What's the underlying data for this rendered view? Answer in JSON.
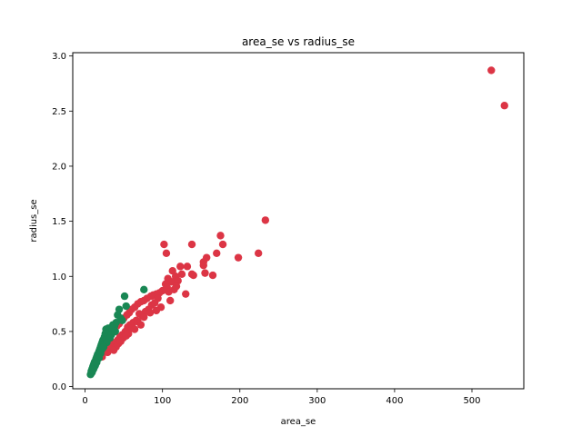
{
  "chart_data": {
    "type": "scatter",
    "title": "area_se vs radius_se",
    "xlabel": "area_se",
    "ylabel": "radius_se",
    "xlim": [
      -16,
      567
    ],
    "ylim": [
      -0.02,
      3.03
    ],
    "xticks": [
      0,
      100,
      200,
      300,
      400,
      500
    ],
    "yticks": [
      0.0,
      0.5,
      1.0,
      1.5,
      2.0,
      2.5,
      3.0
    ],
    "grid": false,
    "series": [
      {
        "color": "#dc3545",
        "points": [
          [
            525,
            2.87
          ],
          [
            542,
            2.55
          ],
          [
            233,
            1.51
          ],
          [
            175,
            1.37
          ],
          [
            178,
            1.29
          ],
          [
            138,
            1.29
          ],
          [
            102,
            1.29
          ],
          [
            105,
            1.21
          ],
          [
            224,
            1.21
          ],
          [
            198,
            1.17
          ],
          [
            170,
            1.21
          ],
          [
            157,
            1.17
          ],
          [
            153,
            1.13
          ],
          [
            153,
            1.1
          ],
          [
            123,
            1.09
          ],
          [
            113,
            1.05
          ],
          [
            132,
            1.09
          ],
          [
            140,
            1.01
          ],
          [
            138,
            1.02
          ],
          [
            125,
            1.02
          ],
          [
            117,
            1.0
          ],
          [
            107,
            0.98
          ],
          [
            165,
            1.01
          ],
          [
            155,
            1.03
          ],
          [
            112,
            0.95
          ],
          [
            104,
            0.93
          ],
          [
            100,
            0.87
          ],
          [
            96,
            0.85
          ],
          [
            92,
            0.84
          ],
          [
            88,
            0.83
          ],
          [
            85,
            0.82
          ],
          [
            80,
            0.8
          ],
          [
            76,
            0.78
          ],
          [
            72,
            0.77
          ],
          [
            68,
            0.75
          ],
          [
            64,
            0.72
          ],
          [
            60,
            0.7
          ],
          [
            57,
            0.67
          ],
          [
            54,
            0.65
          ],
          [
            50,
            0.62
          ],
          [
            47,
            0.6
          ],
          [
            44,
            0.57
          ],
          [
            41,
            0.55
          ],
          [
            38,
            0.52
          ],
          [
            35,
            0.49
          ],
          [
            33,
            0.47
          ],
          [
            31,
            0.44
          ],
          [
            30,
            0.42
          ],
          [
            28,
            0.39
          ],
          [
            26,
            0.37
          ],
          [
            24,
            0.34
          ],
          [
            22,
            0.27
          ],
          [
            130,
            0.84
          ],
          [
            115,
            0.88
          ],
          [
            110,
            0.78
          ],
          [
            98,
            0.72
          ],
          [
            94,
            0.8
          ],
          [
            86,
            0.74
          ],
          [
            82,
            0.7
          ],
          [
            78,
            0.68
          ],
          [
            74,
            0.64
          ],
          [
            70,
            0.66
          ],
          [
            66,
            0.6
          ],
          [
            62,
            0.58
          ],
          [
            58,
            0.56
          ],
          [
            55,
            0.54
          ],
          [
            52,
            0.5
          ],
          [
            48,
            0.47
          ],
          [
            45,
            0.45
          ],
          [
            42,
            0.42
          ],
          [
            39,
            0.4
          ],
          [
            36,
            0.38
          ],
          [
            34,
            0.36
          ],
          [
            32,
            0.34
          ],
          [
            90,
            0.76
          ],
          [
            84,
            0.67
          ],
          [
            76,
            0.63
          ],
          [
            68,
            0.59
          ],
          [
            61,
            0.53
          ],
          [
            56,
            0.48
          ],
          [
            49,
            0.44
          ],
          [
            43,
            0.39
          ],
          [
            106,
            0.9
          ],
          [
            120,
            0.96
          ],
          [
            118,
            0.91
          ],
          [
            108,
            0.86
          ],
          [
            92,
            0.69
          ],
          [
            72,
            0.56
          ],
          [
            64,
            0.52
          ],
          [
            53,
            0.46
          ],
          [
            46,
            0.41
          ],
          [
            40,
            0.36
          ],
          [
            37,
            0.33
          ],
          [
            29,
            0.31
          ]
        ]
      },
      {
        "color": "#198754",
        "points": [
          [
            76,
            0.88
          ],
          [
            51,
            0.82
          ],
          [
            53,
            0.73
          ],
          [
            44,
            0.7
          ],
          [
            42,
            0.65
          ],
          [
            36,
            0.56
          ],
          [
            30,
            0.53
          ],
          [
            27,
            0.52
          ],
          [
            33,
            0.5
          ],
          [
            28,
            0.47
          ],
          [
            25,
            0.45
          ],
          [
            23,
            0.42
          ],
          [
            22,
            0.4
          ],
          [
            21,
            0.38
          ],
          [
            20,
            0.36
          ],
          [
            19,
            0.34
          ],
          [
            18,
            0.32
          ],
          [
            17,
            0.3
          ],
          [
            16,
            0.29
          ],
          [
            15,
            0.27
          ],
          [
            14,
            0.25
          ],
          [
            13,
            0.23
          ],
          [
            12,
            0.22
          ],
          [
            11,
            0.2
          ],
          [
            10,
            0.18
          ],
          [
            9,
            0.16
          ],
          [
            8,
            0.14
          ],
          [
            8,
            0.12
          ],
          [
            7,
            0.11
          ],
          [
            26,
            0.48
          ],
          [
            24,
            0.43
          ],
          [
            22,
            0.37
          ],
          [
            21,
            0.33
          ],
          [
            19,
            0.31
          ],
          [
            17,
            0.27
          ],
          [
            16,
            0.25
          ],
          [
            14,
            0.21
          ],
          [
            13,
            0.19
          ],
          [
            12,
            0.18
          ],
          [
            11,
            0.16
          ],
          [
            10,
            0.15
          ],
          [
            9,
            0.13
          ],
          [
            31,
            0.49
          ],
          [
            29,
            0.45
          ],
          [
            27,
            0.42
          ],
          [
            25,
            0.39
          ],
          [
            23,
            0.35
          ],
          [
            20,
            0.3
          ],
          [
            18,
            0.26
          ],
          [
            15,
            0.22
          ],
          [
            35,
            0.52
          ],
          [
            38,
            0.55
          ],
          [
            40,
            0.58
          ],
          [
            34,
            0.47
          ],
          [
            32,
            0.44
          ],
          [
            28,
            0.4
          ],
          [
            24,
            0.36
          ],
          [
            46,
            0.62
          ],
          [
            48,
            0.6
          ],
          [
            39,
            0.5
          ]
        ]
      }
    ]
  }
}
